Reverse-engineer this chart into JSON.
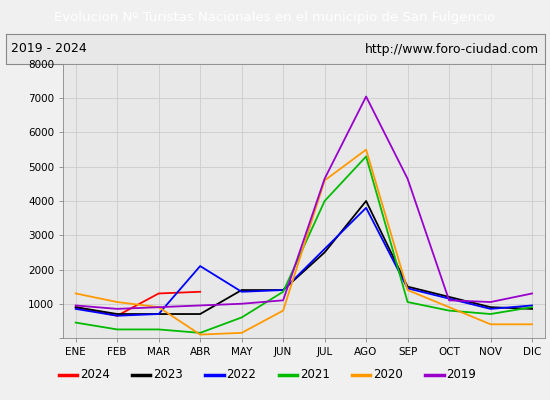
{
  "title": "Evolucion Nº Turistas Nacionales en el municipio de San Fulgencio",
  "subtitle_left": "2019 - 2024",
  "subtitle_right": "http://www.foro-ciudad.com",
  "title_bg_color": "#4472c4",
  "title_text_color": "#ffffff",
  "months": [
    "ENE",
    "FEB",
    "MAR",
    "ABR",
    "MAY",
    "JUN",
    "JUL",
    "AGO",
    "SEP",
    "OCT",
    "NOV",
    "DIC"
  ],
  "ylim": [
    0,
    8000
  ],
  "yticks": [
    0,
    1000,
    2000,
    3000,
    4000,
    5000,
    6000,
    7000,
    8000
  ],
  "series": {
    "2024": {
      "color": "#ff0000",
      "data": [
        900,
        650,
        1300,
        1350,
        null,
        null,
        null,
        null,
        null,
        null,
        null,
        null
      ]
    },
    "2023": {
      "color": "#000000",
      "data": [
        900,
        700,
        700,
        700,
        1400,
        1400,
        2500,
        4000,
        1500,
        1200,
        900,
        850
      ]
    },
    "2022": {
      "color": "#0000ff",
      "data": [
        850,
        650,
        700,
        2100,
        1350,
        1400,
        2600,
        3800,
        1450,
        1150,
        850,
        950
      ]
    },
    "2021": {
      "color": "#00bb00",
      "data": [
        450,
        250,
        250,
        150,
        600,
        1350,
        4000,
        5300,
        1050,
        800,
        700,
        900
      ]
    },
    "2020": {
      "color": "#ff9900",
      "data": [
        1300,
        1050,
        900,
        100,
        150,
        800,
        4600,
        5500,
        1400,
        900,
        400,
        400
      ]
    },
    "2019": {
      "color": "#9900cc",
      "data": [
        950,
        850,
        900,
        950,
        1000,
        1100,
        4650,
        7050,
        4650,
        1100,
        1050,
        1300
      ]
    }
  },
  "legend_order": [
    "2024",
    "2023",
    "2022",
    "2021",
    "2020",
    "2019"
  ],
  "grid_color": "#cccccc",
  "plot_bg_color": "#e8e8e8",
  "outer_bg_color": "#f0f0f0",
  "subtitle_box_color": "#e8e8e8",
  "subtitle_border_color": "#888888"
}
